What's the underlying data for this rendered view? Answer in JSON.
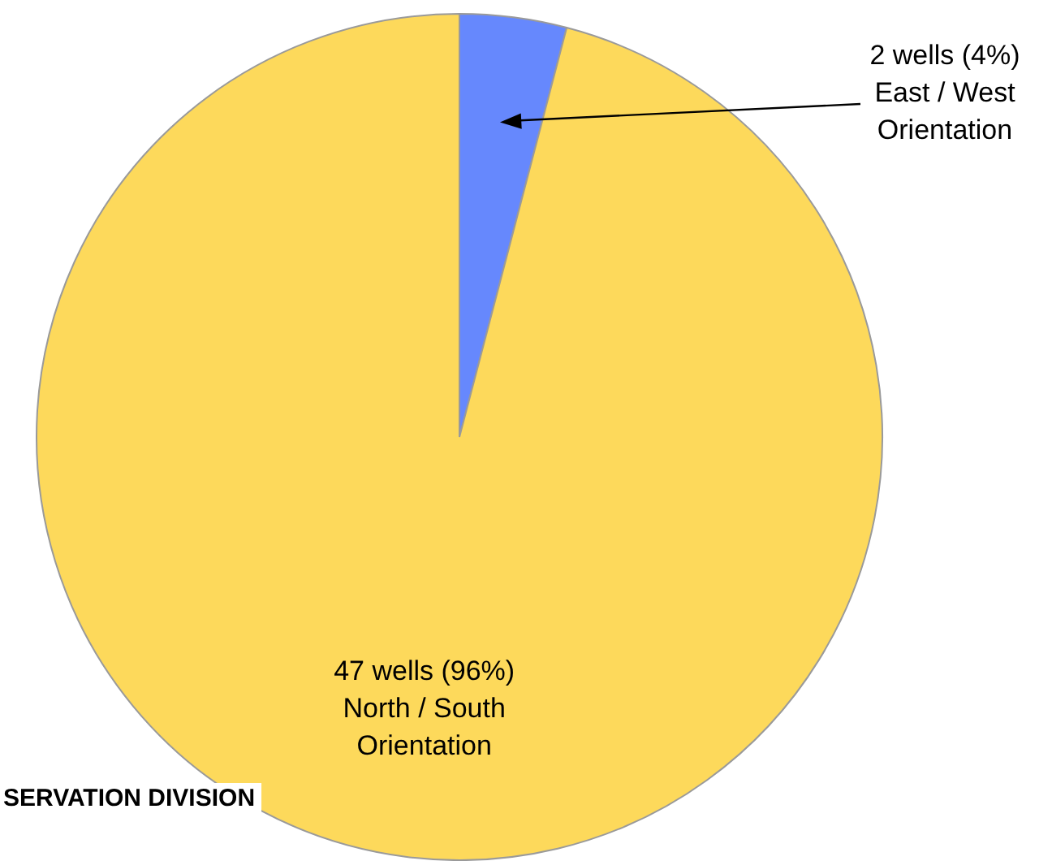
{
  "chart_data": {
    "type": "pie",
    "categories": [
      "East / West Orientation",
      "North / South Orientation"
    ],
    "values": [
      2,
      47
    ],
    "value_labels": [
      "2 wells (4%)",
      "47 wells (96%)"
    ],
    "colors": [
      "#6688fd",
      "#fdd95b"
    ],
    "legend": false,
    "annotations": [
      "SERVATION DIVISION"
    ]
  }
}
